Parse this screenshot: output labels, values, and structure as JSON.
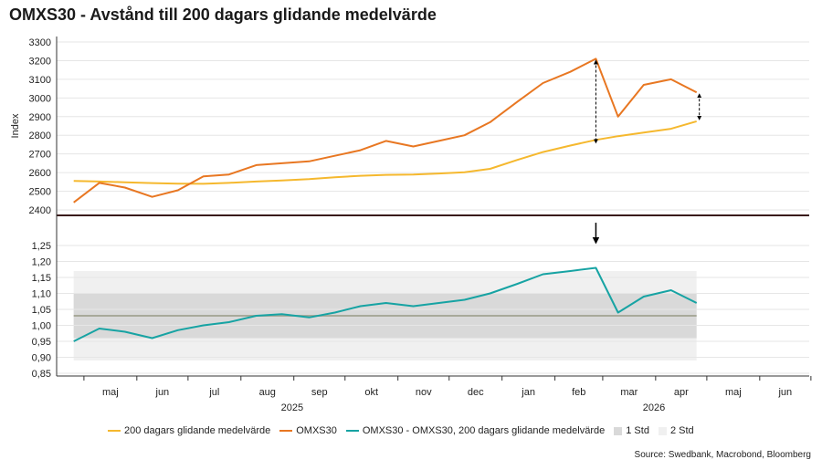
{
  "title": "OMXS30 - Avstånd till 200 dagars glidande medelvärde",
  "source": "Source: Swedbank, Macrobond, Bloomberg",
  "colors": {
    "ma200": "#f5b82e",
    "omxs30": "#e87722",
    "diff": "#17a3a3",
    "std1": "#d9d9d9",
    "std2": "#f0f0f0",
    "meanline": "#a8a99a",
    "divider": "#3a1a1a"
  },
  "chart_data": [
    {
      "type": "line",
      "ylabel": "Index",
      "ylim": [
        2400,
        3300
      ],
      "yticks": [
        "2400",
        "2500",
        "2600",
        "2700",
        "2800",
        "2900",
        "3000",
        "3100",
        "3200",
        "3300"
      ],
      "x": [
        "2025-04-25",
        "2025-05-10",
        "2025-05-25",
        "2025-06-10",
        "2025-06-25",
        "2025-07-10",
        "2025-07-25",
        "2025-08-10",
        "2025-08-25",
        "2025-09-10",
        "2025-09-25",
        "2025-10-10",
        "2025-10-25",
        "2025-11-10",
        "2025-11-25",
        "2025-12-10",
        "2025-12-25",
        "2026-01-10",
        "2026-01-25",
        "2026-02-10",
        "2026-02-25",
        "2026-03-10",
        "2026-03-25",
        "2026-04-10",
        "2026-04-25"
      ],
      "series": [
        {
          "name": "OMXS30",
          "values": [
            2440,
            2545,
            2520,
            2470,
            2505,
            2580,
            2590,
            2640,
            2650,
            2660,
            2690,
            2720,
            2770,
            2740,
            2770,
            2800,
            2870,
            2980,
            3080,
            3140,
            3210,
            2900,
            3070,
            3100,
            3030
          ]
        },
        {
          "name": "200 dagars glidande medelvärde",
          "values": [
            2555,
            2552,
            2548,
            2544,
            2541,
            2540,
            2545,
            2552,
            2558,
            2565,
            2575,
            2583,
            2588,
            2590,
            2595,
            2602,
            2620,
            2668,
            2710,
            2745,
            2775,
            2795,
            2815,
            2835,
            2875
          ]
        }
      ]
    },
    {
      "type": "line",
      "ylim": [
        0.85,
        1.25
      ],
      "yticks": [
        "0,85",
        "0,90",
        "0,95",
        "1,00",
        "1,05",
        "1,10",
        "1,15",
        "1,20",
        "1,25"
      ],
      "x": [
        "2025-04-25",
        "2025-05-10",
        "2025-05-25",
        "2025-06-10",
        "2025-06-25",
        "2025-07-10",
        "2025-07-25",
        "2025-08-10",
        "2025-08-25",
        "2025-09-10",
        "2025-09-25",
        "2025-10-10",
        "2025-10-25",
        "2025-11-10",
        "2025-11-25",
        "2025-12-10",
        "2025-12-25",
        "2026-01-10",
        "2026-01-25",
        "2026-02-10",
        "2026-02-25",
        "2026-03-10",
        "2026-03-25",
        "2026-04-10",
        "2026-04-25"
      ],
      "mean": 1.03,
      "std1": [
        0.96,
        1.1
      ],
      "std2": [
        0.89,
        1.17
      ],
      "series": [
        {
          "name": "OMXS30 - OMXS30, 200 dagars glidande medelvärde",
          "values": [
            0.95,
            0.99,
            0.98,
            0.96,
            0.985,
            1.0,
            1.01,
            1.03,
            1.035,
            1.025,
            1.04,
            1.06,
            1.07,
            1.06,
            1.07,
            1.08,
            1.1,
            1.13,
            1.16,
            1.17,
            1.18,
            1.04,
            1.09,
            1.11,
            1.07
          ]
        }
      ]
    }
  ],
  "x_axis": {
    "months": [
      "maj",
      "jun",
      "jul",
      "aug",
      "sep",
      "okt",
      "nov",
      "dec",
      "jan",
      "feb",
      "mar",
      "apr",
      "maj",
      "jun"
    ],
    "years": [
      "2025",
      "2026"
    ]
  },
  "legend": [
    {
      "label": "200 dagars glidande medelvärde",
      "kind": "line",
      "color": "#f5b82e"
    },
    {
      "label": "OMXS30",
      "kind": "line",
      "color": "#e87722"
    },
    {
      "label": "OMXS30 - OMXS30, 200 dagars glidande medelvärde",
      "kind": "line",
      "color": "#17a3a3"
    },
    {
      "label": "1 Std",
      "kind": "box",
      "color": "#d9d9d9"
    },
    {
      "label": "2 Std",
      "kind": "box",
      "color": "#f0f0f0"
    }
  ]
}
